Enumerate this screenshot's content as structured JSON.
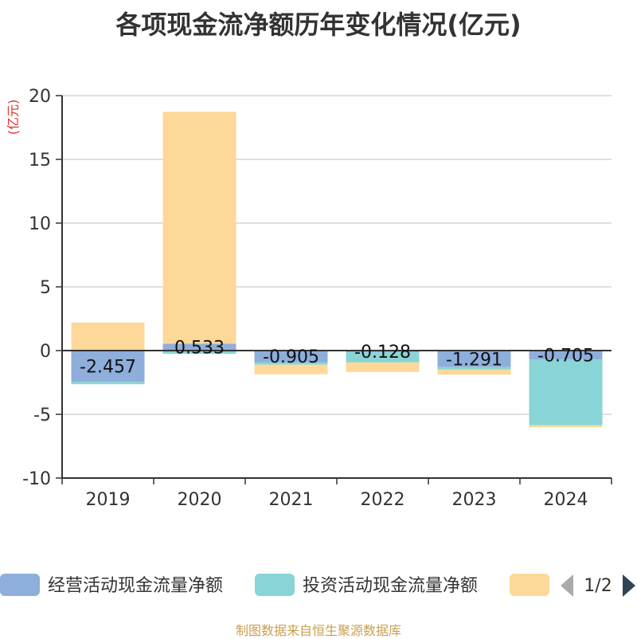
{
  "chart_data": {
    "type": "bar",
    "stacked": true,
    "title": "各项现金流净额历年变化情况(亿元)",
    "ylabel": "(亿元)",
    "categories": [
      "2019",
      "2020",
      "2021",
      "2022",
      "2023",
      "2024"
    ],
    "ylim": [
      -10,
      20
    ],
    "yticks": [
      20,
      15,
      10,
      5,
      0,
      -5,
      -10
    ],
    "grid": true,
    "series": [
      {
        "name": "经营活动现金流量净额",
        "color": "#8eaedb",
        "values": [
          -2.457,
          0.533,
          -0.905,
          -0.128,
          -1.291,
          -0.705
        ],
        "labels": [
          "-2.457",
          "0.533",
          "-0.905",
          "-0.128",
          "-1.291",
          "-0.705"
        ]
      },
      {
        "name": "投资活动现金流量净额",
        "color": "#88d4d6",
        "values": [
          -0.18,
          -0.25,
          -0.2,
          -0.8,
          -0.2,
          -5.15
        ]
      },
      {
        "name": "",
        "color": "#fdd899",
        "values": [
          2.2,
          18.2,
          -0.75,
          -0.75,
          -0.4,
          -0.15
        ]
      }
    ],
    "legend": {
      "position": "bottom",
      "page": "1/2"
    }
  },
  "source": "制图数据来自恒生聚源数据库"
}
